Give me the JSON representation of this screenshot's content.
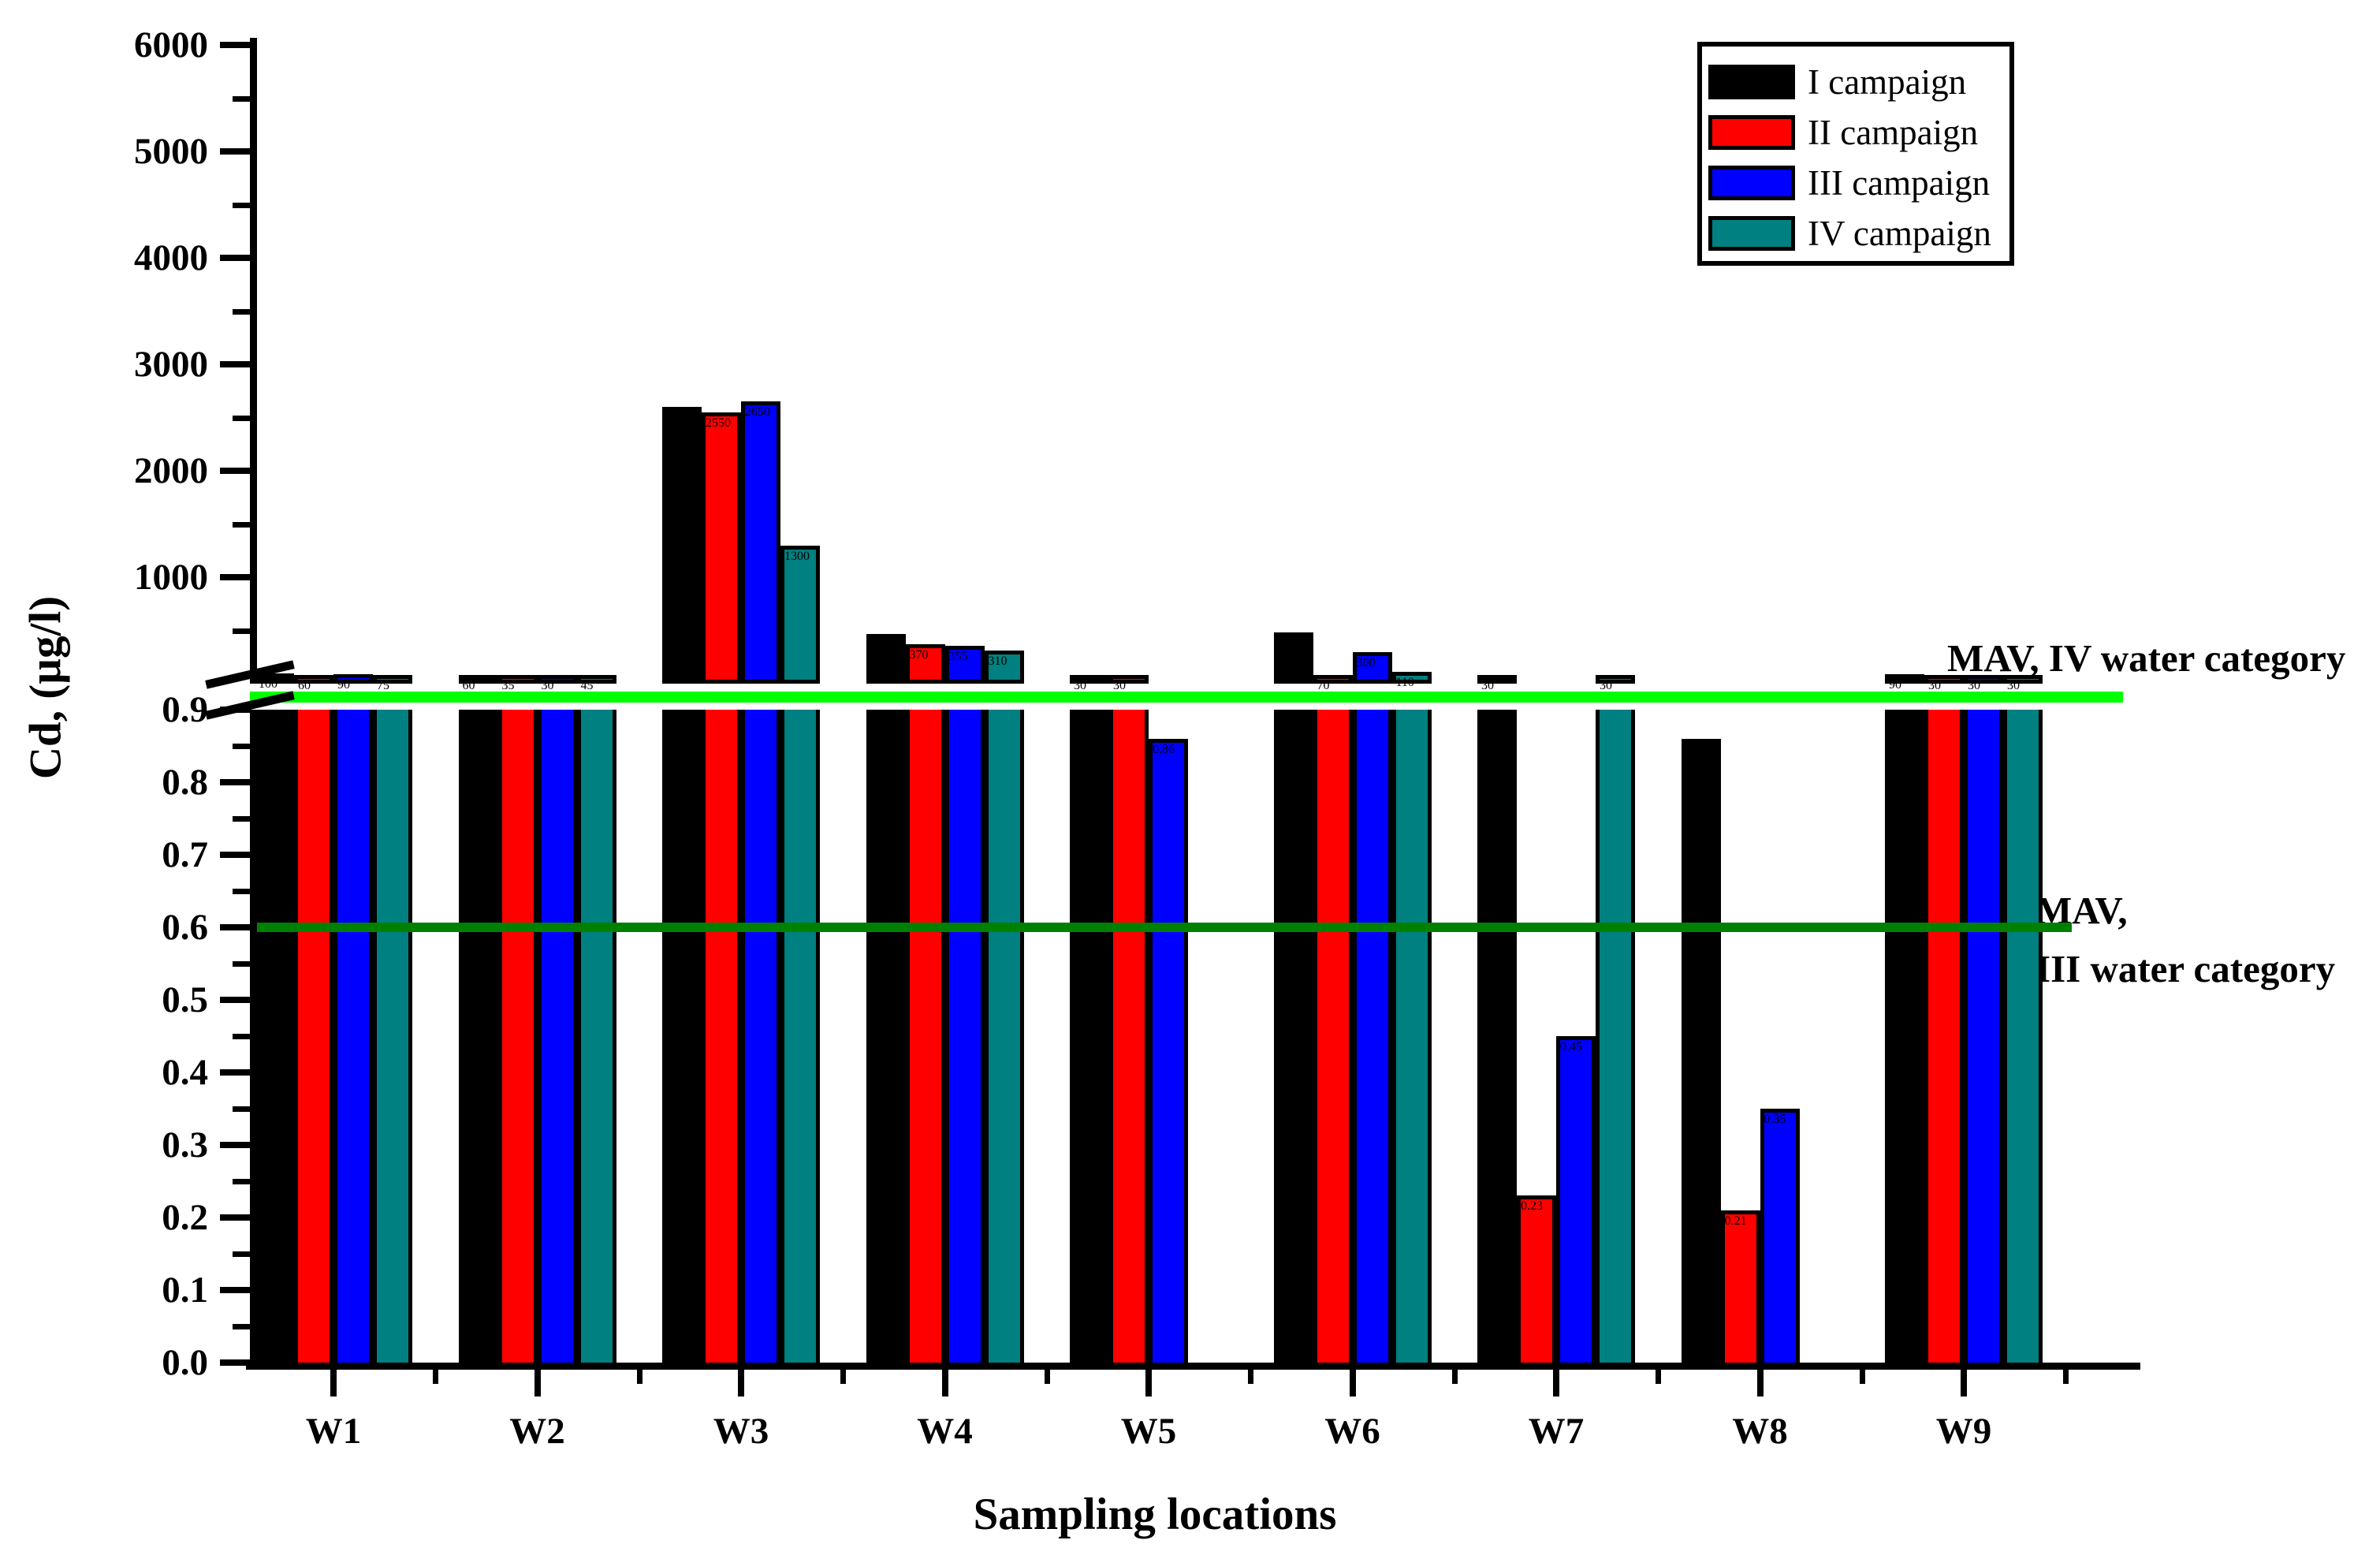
{
  "chart_data": {
    "type": "bar",
    "title": "",
    "xlabel": "Sampling locations",
    "ylabel": "Cd, (µg/l)",
    "categories": [
      "W1",
      "W2",
      "W3",
      "W4",
      "W5",
      "W6",
      "W7",
      "W8",
      "W9"
    ],
    "series": [
      {
        "name": "I campaign",
        "color": "#000000",
        "values": [
          100,
          60,
          2600,
          470,
          30,
          480,
          30,
          0.86,
          90
        ]
      },
      {
        "name": "II campaign",
        "color": "#ff0000",
        "values": [
          60,
          35,
          2550,
          370,
          30,
          70,
          0.23,
          0.21,
          30
        ]
      },
      {
        "name": "III campaign",
        "color": "#0000ff",
        "values": [
          90,
          30,
          2650,
          355,
          0.86,
          300,
          0.45,
          0.35,
          30
        ]
      },
      {
        "name": "IV campaign",
        "color": "#008080",
        "values": [
          75,
          45,
          1300,
          310,
          null,
          110,
          30,
          null,
          30
        ]
      }
    ],
    "y_axis": {
      "axis_break": true,
      "lower_range": [
        0.0,
        0.9
      ],
      "upper_range": [
        1,
        6000
      ],
      "lower_ticks": [
        "0.0",
        "0.1",
        "0.2",
        "0.3",
        "0.4",
        "0.5",
        "0.6",
        "0.7",
        "0.8",
        "0.9"
      ],
      "upper_ticks": [
        "1000",
        "2000",
        "3000",
        "4000",
        "5000",
        "6000"
      ]
    },
    "reference_lines": [
      {
        "id": "mav_iv",
        "label": "MAV, IV water category",
        "value": 0.9,
        "color": "#00ff00"
      },
      {
        "id": "mav_iii",
        "label_line1": "MAV,",
        "label_line2": "III water category",
        "value": 0.6,
        "color": "#008000"
      }
    ],
    "legend_position": "top-right",
    "grid": false
  }
}
